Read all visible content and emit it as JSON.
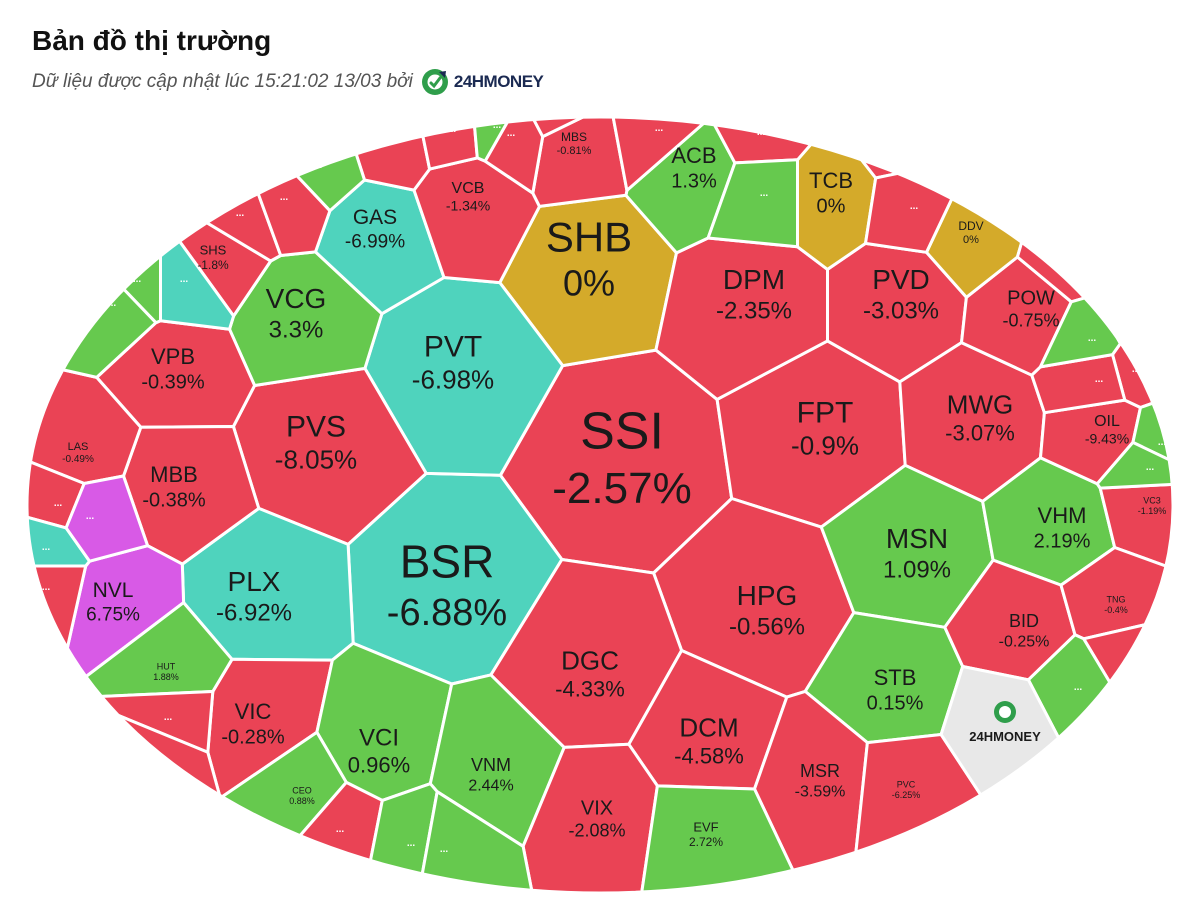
{
  "header": {
    "title": "Bản đồ thị trường",
    "subtitle": "Dữ liệu được cập nhật lúc 15:21:02 13/03 bởi",
    "brand": "24HMONEY"
  },
  "colors": {
    "down": "#ea4355",
    "up": "#66c94e",
    "flat": "#d4aa2a",
    "floor": "#4fd3bd",
    "ceiling": "#d85ae6",
    "brand_tile": "#e8e8e8",
    "brand_logo": "#2f9e4b",
    "brand_text": "#1b2a52"
  },
  "more_label": "...",
  "chart_data": {
    "type": "treemap",
    "title": "Bản đồ thị trường",
    "cells": [
      {
        "ticker": "SSI",
        "value": "-2.57%",
        "status": "down"
      },
      {
        "ticker": "BSR",
        "value": "-6.88%",
        "status": "floor"
      },
      {
        "ticker": "SHB",
        "value": "0%",
        "status": "flat"
      },
      {
        "ticker": "PVT",
        "value": "-6.98%",
        "status": "floor"
      },
      {
        "ticker": "PVS",
        "value": "-8.05%",
        "status": "down"
      },
      {
        "ticker": "PLX",
        "value": "-6.92%",
        "status": "floor"
      },
      {
        "ticker": "FPT",
        "value": "-0.9%",
        "status": "down"
      },
      {
        "ticker": "HPG",
        "value": "-0.56%",
        "status": "down"
      },
      {
        "ticker": "DPM",
        "value": "-2.35%",
        "status": "down"
      },
      {
        "ticker": "PVD",
        "value": "-3.03%",
        "status": "down"
      },
      {
        "ticker": "MWG",
        "value": "-3.07%",
        "status": "down"
      },
      {
        "ticker": "MSN",
        "value": "1.09%",
        "status": "up"
      },
      {
        "ticker": "DGC",
        "value": "-4.33%",
        "status": "down"
      },
      {
        "ticker": "DCM",
        "value": "-4.58%",
        "status": "down"
      },
      {
        "ticker": "VCG",
        "value": "3.3%",
        "status": "up"
      },
      {
        "ticker": "GAS",
        "value": "-6.99%",
        "status": "floor"
      },
      {
        "ticker": "VCB",
        "value": "-1.34%",
        "status": "down"
      },
      {
        "ticker": "ACB",
        "value": "1.3%",
        "status": "up"
      },
      {
        "ticker": "TCB",
        "value": "0%",
        "status": "flat"
      },
      {
        "ticker": "POW",
        "value": "-0.75%",
        "status": "down"
      },
      {
        "ticker": "VPB",
        "value": "-0.39%",
        "status": "down"
      },
      {
        "ticker": "MBB",
        "value": "-0.38%",
        "status": "down"
      },
      {
        "ticker": "NVL",
        "value": "6.75%",
        "status": "ceiling"
      },
      {
        "ticker": "VHM",
        "value": "2.19%",
        "status": "up"
      },
      {
        "ticker": "VIC",
        "value": "-0.28%",
        "status": "down"
      },
      {
        "ticker": "VCI",
        "value": "0.96%",
        "status": "up"
      },
      {
        "ticker": "VNM",
        "value": "2.44%",
        "status": "up"
      },
      {
        "ticker": "VIX",
        "value": "-2.08%",
        "status": "down"
      },
      {
        "ticker": "STB",
        "value": "0.15%",
        "status": "up"
      },
      {
        "ticker": "MSR",
        "value": "-3.59%",
        "status": "down"
      },
      {
        "ticker": "BID",
        "value": "-0.25%",
        "status": "down"
      },
      {
        "ticker": "OIL",
        "value": "-9.43%",
        "status": "down"
      },
      {
        "ticker": "EVF",
        "value": "2.72%",
        "status": "up"
      },
      {
        "ticker": "SHS",
        "value": "-1.8%",
        "status": "down"
      },
      {
        "ticker": "MBS",
        "value": "-0.81%",
        "status": "down"
      },
      {
        "ticker": "DDV",
        "value": "0%",
        "status": "flat"
      },
      {
        "ticker": "LAS",
        "value": "-0.49%",
        "status": "down"
      },
      {
        "ticker": "HUT",
        "value": "1.88%",
        "status": "up"
      },
      {
        "ticker": "CEO",
        "value": "0.88%",
        "status": "up"
      },
      {
        "ticker": "PVC",
        "value": "-6.25%",
        "status": "down"
      },
      {
        "ticker": "VC3",
        "value": "-1.19%",
        "status": "down"
      },
      {
        "ticker": "TNG",
        "value": "-0.4%",
        "status": "down"
      }
    ],
    "unlabeled_cells": [
      {
        "status": "down"
      },
      {
        "status": "down"
      },
      {
        "status": "down"
      },
      {
        "status": "down"
      },
      {
        "status": "down"
      },
      {
        "status": "down"
      },
      {
        "status": "down"
      },
      {
        "status": "down"
      },
      {
        "status": "down"
      },
      {
        "status": "down"
      },
      {
        "status": "down"
      },
      {
        "status": "down"
      },
      {
        "status": "down"
      },
      {
        "status": "down"
      },
      {
        "status": "down"
      },
      {
        "status": "down"
      },
      {
        "status": "down"
      },
      {
        "status": "down"
      },
      {
        "status": "down"
      },
      {
        "status": "down"
      },
      {
        "status": "up"
      },
      {
        "status": "up"
      },
      {
        "status": "up"
      },
      {
        "status": "up"
      },
      {
        "status": "up"
      },
      {
        "status": "up"
      },
      {
        "status": "up"
      },
      {
        "status": "up"
      },
      {
        "status": "up"
      },
      {
        "status": "up"
      },
      {
        "status": "up"
      },
      {
        "status": "up"
      },
      {
        "status": "floor"
      },
      {
        "status": "floor"
      },
      {
        "status": "ceiling"
      }
    ],
    "logo_cell": {
      "label": "24HMONEY"
    }
  }
}
